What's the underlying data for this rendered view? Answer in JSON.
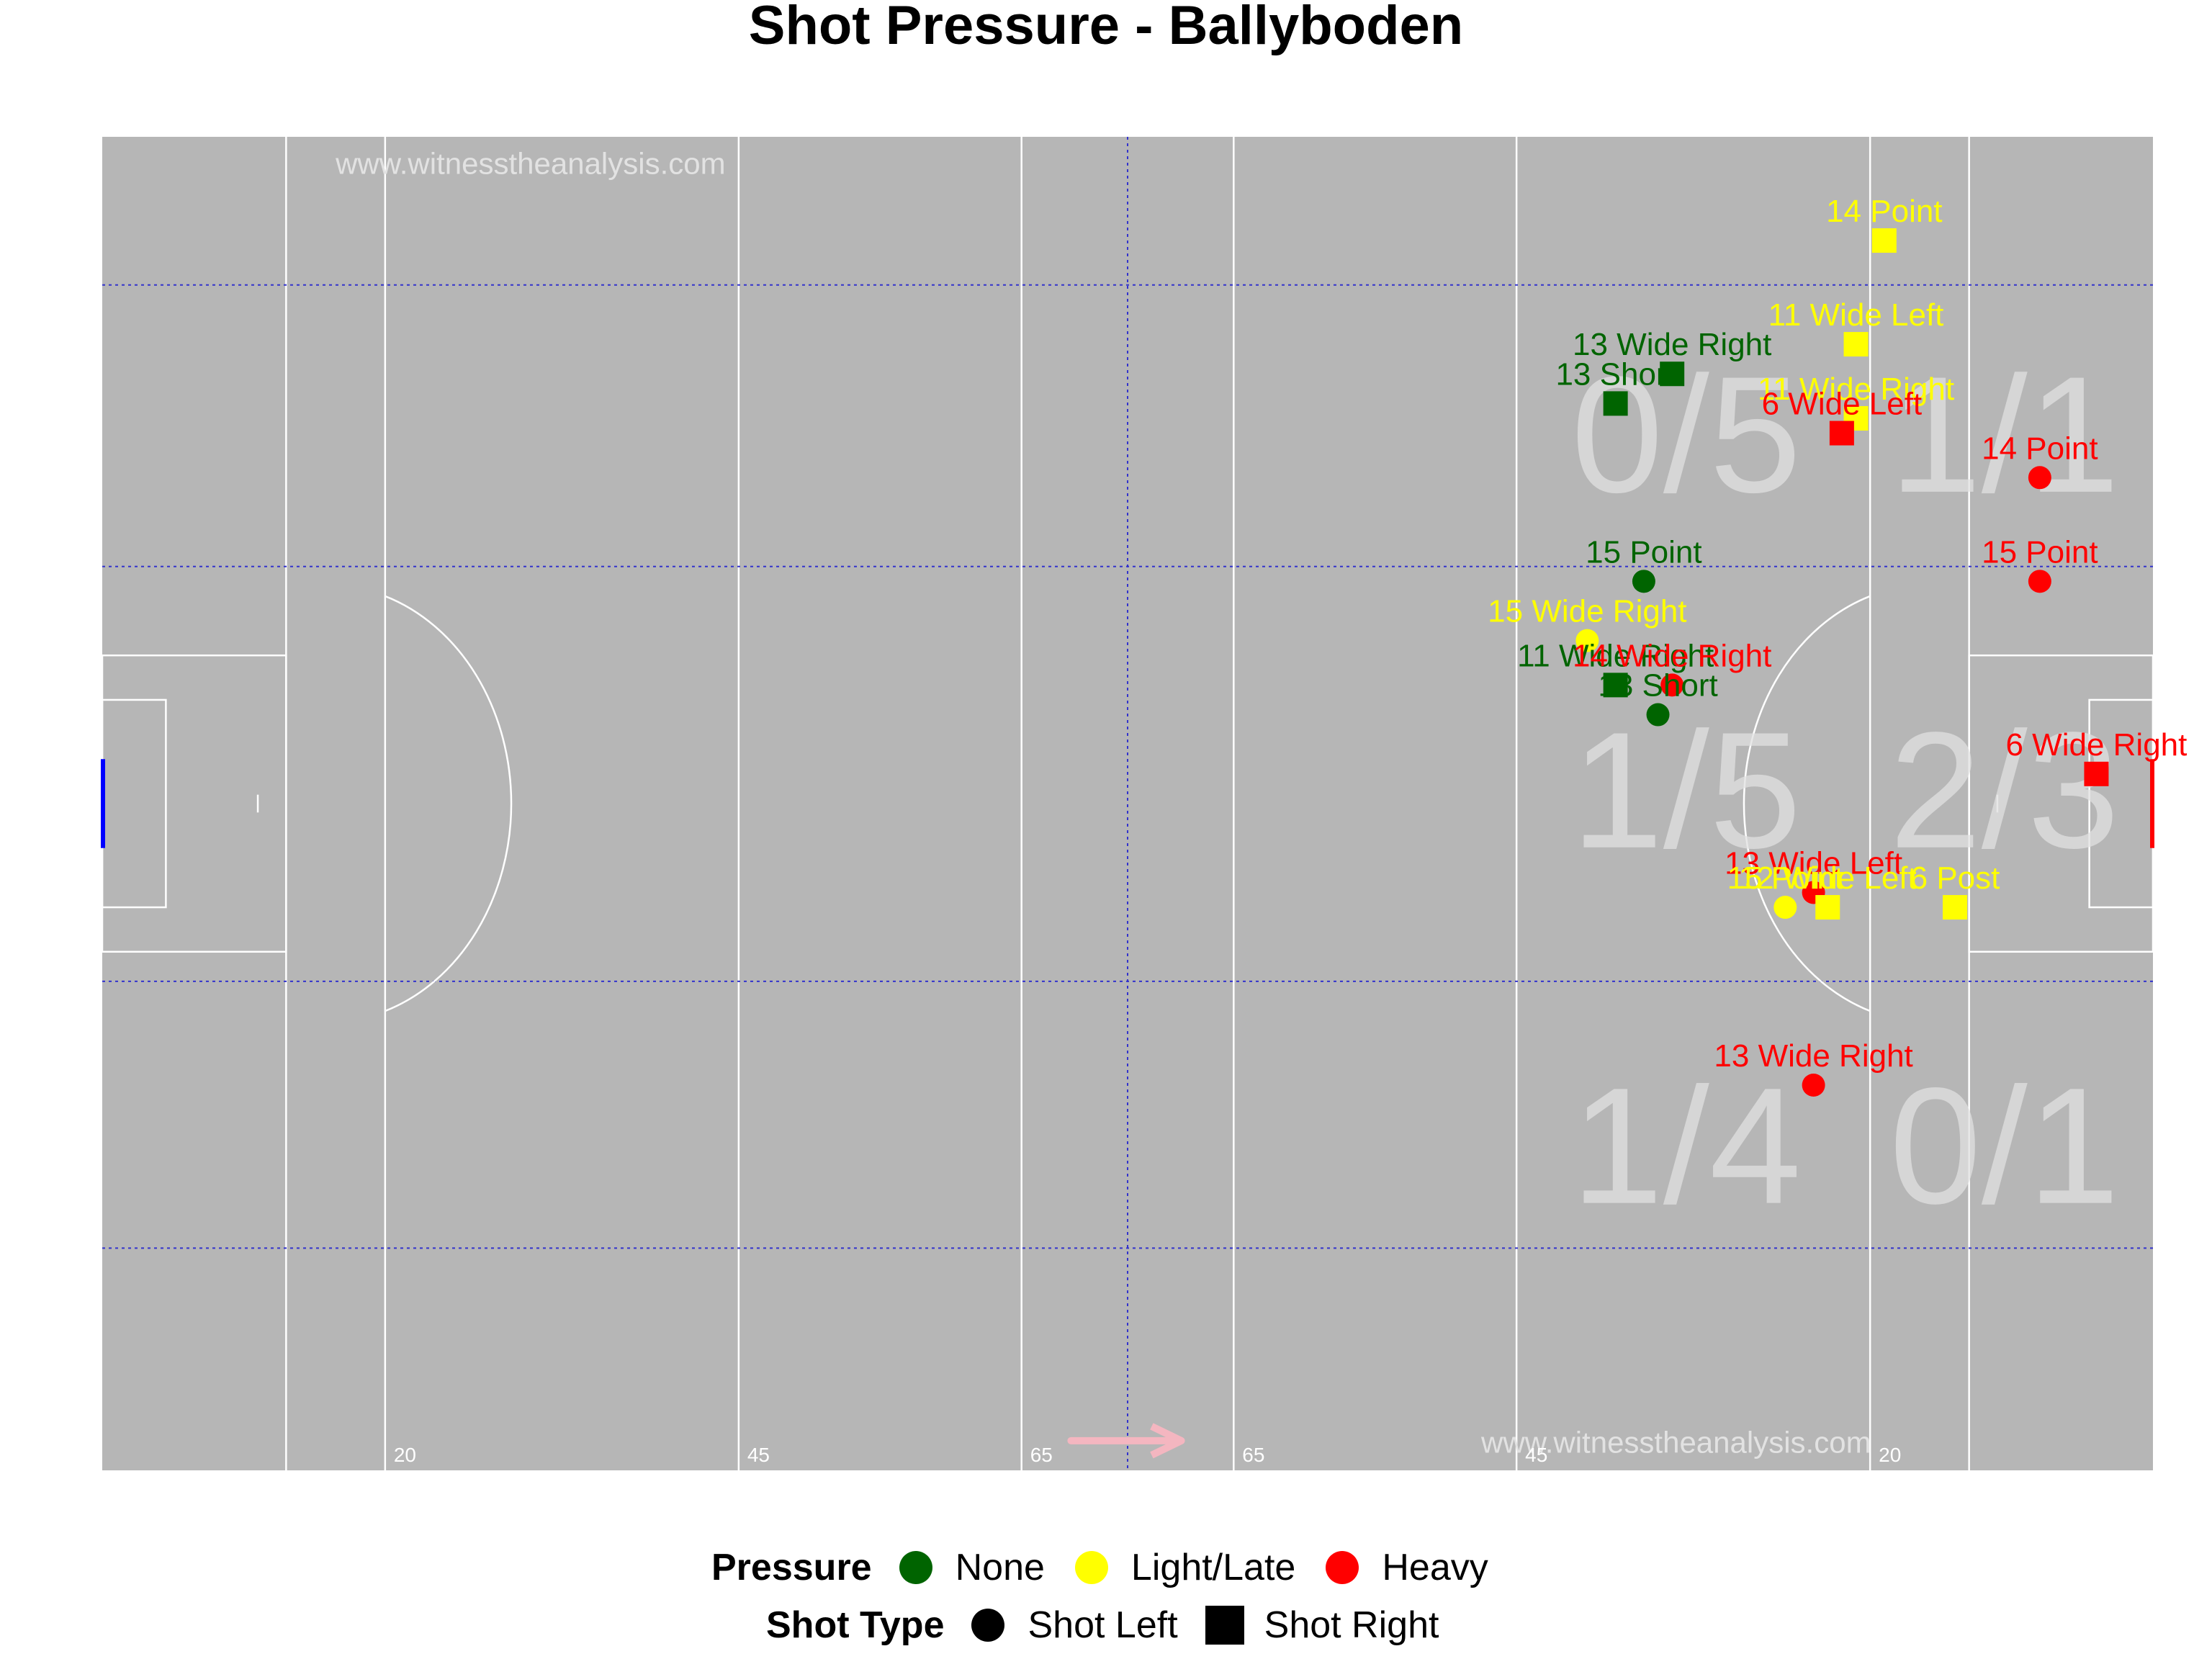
{
  "chart_data": {
    "type": "scatter",
    "title": "Shot Pressure - Ballyboden",
    "xlim": [
      0,
      145
    ],
    "ylim": [
      0,
      90
    ],
    "watermark": "www.witnesstheanalysis.com",
    "yard_labels": [
      {
        "x": 20,
        "text": "20"
      },
      {
        "x": 45,
        "text": "45"
      },
      {
        "x": 65,
        "text": "65"
      },
      {
        "x": 80,
        "text": "65"
      },
      {
        "x": 100,
        "text": "45"
      },
      {
        "x": 125,
        "text": "20"
      }
    ],
    "zone_labels": [
      {
        "x": 112,
        "y": 69,
        "text": "0/5"
      },
      {
        "x": 134.5,
        "y": 69,
        "text": "1/1"
      },
      {
        "x": 112,
        "y": 45,
        "text": "1/5"
      },
      {
        "x": 134.5,
        "y": 45,
        "text": "2/3"
      },
      {
        "x": 112,
        "y": 21,
        "text": "1/4"
      },
      {
        "x": 134.5,
        "y": 21,
        "text": "0/1"
      }
    ],
    "colors": {
      "None": "#006400",
      "Light/Late": "#FFFF00",
      "Heavy": "#FF0000"
    },
    "shots": [
      {
        "x": 126,
        "y": 83,
        "shape": "square",
        "pressure": "Light/Late",
        "label": "14 Point"
      },
      {
        "x": 124,
        "y": 76,
        "shape": "square",
        "pressure": "Light/Late",
        "label": "11 Wide Left"
      },
      {
        "x": 124,
        "y": 71,
        "shape": "square",
        "pressure": "Light/Late",
        "label": "11 Wide Right"
      },
      {
        "x": 111,
        "y": 74,
        "shape": "square",
        "pressure": "None",
        "label": "13 Wide Right"
      },
      {
        "x": 107,
        "y": 72,
        "shape": "square",
        "pressure": "None",
        "label": "13 Short"
      },
      {
        "x": 123,
        "y": 70,
        "shape": "square",
        "pressure": "Heavy",
        "label": "6 Wide Left"
      },
      {
        "x": 137,
        "y": 67,
        "shape": "circle",
        "pressure": "Heavy",
        "label": "14 Point"
      },
      {
        "x": 109,
        "y": 60,
        "shape": "circle",
        "pressure": "None",
        "label": "15 Point"
      },
      {
        "x": 137,
        "y": 60,
        "shape": "circle",
        "pressure": "Heavy",
        "label": "15 Point"
      },
      {
        "x": 105,
        "y": 56,
        "shape": "circle",
        "pressure": "Light/Late",
        "label": "15 Wide Right"
      },
      {
        "x": 107,
        "y": 53,
        "shape": "square",
        "pressure": "None",
        "label": "11 Wide Right"
      },
      {
        "x": 111,
        "y": 53,
        "shape": "circle",
        "pressure": "Heavy",
        "label": "14 Wide Right"
      },
      {
        "x": 110,
        "y": 51,
        "shape": "circle",
        "pressure": "None",
        "label": "13 Short"
      },
      {
        "x": 141,
        "y": 47,
        "shape": "square",
        "pressure": "Heavy",
        "label": "6 Wide Right"
      },
      {
        "x": 121,
        "y": 39,
        "shape": "circle",
        "pressure": "Heavy",
        "label": "13 Wide Left"
      },
      {
        "x": 119,
        "y": 38,
        "shape": "circle",
        "pressure": "Light/Late",
        "label": "15 Point"
      },
      {
        "x": 122,
        "y": 38,
        "shape": "square",
        "pressure": "Light/Late",
        "label": "12 Wide Left"
      },
      {
        "x": 131,
        "y": 38,
        "shape": "square",
        "pressure": "Light/Late",
        "label": "6 Post"
      },
      {
        "x": 121,
        "y": 26,
        "shape": "circle",
        "pressure": "Heavy",
        "label": "13 Wide Right"
      }
    ]
  },
  "legend": {
    "pressure": {
      "title": "Pressure",
      "items": [
        {
          "label": "None",
          "color": "#006400"
        },
        {
          "label": "Light/Late",
          "color": "#FFFF00"
        },
        {
          "label": "Heavy",
          "color": "#FF0000"
        }
      ]
    },
    "shot_type": {
      "title": "Shot Type",
      "items": [
        {
          "label": "Shot Left",
          "shape": "circle"
        },
        {
          "label": "Shot Right",
          "shape": "square"
        }
      ]
    }
  }
}
